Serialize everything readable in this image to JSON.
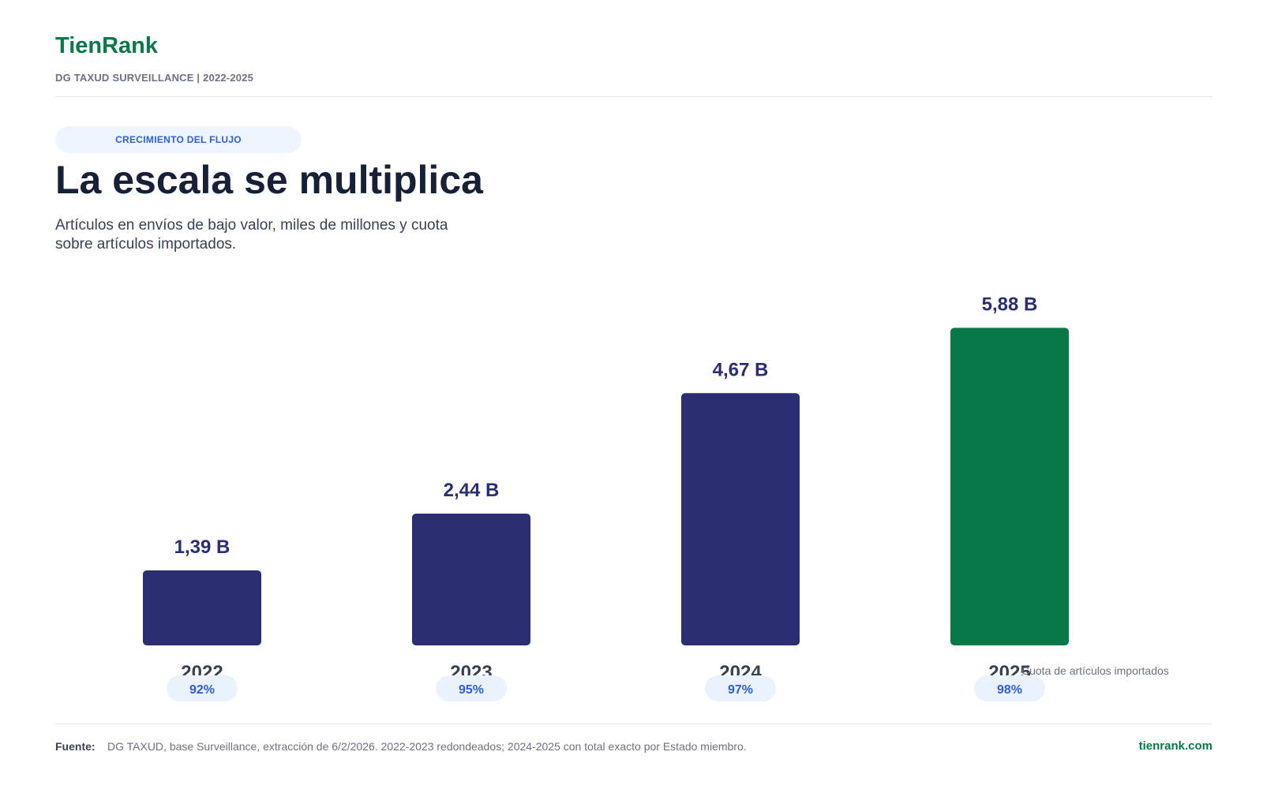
{
  "header": {
    "brand": "TienRank",
    "subtitle": "DG TAXUD SURVEILLANCE | 2022-2025"
  },
  "section": {
    "tag": "CRECIMIENTO DEL FLUJO",
    "title": "La escala se multiplica",
    "description": "Artículos en envíos de bajo valor, miles de millones y cuota sobre artículos importados."
  },
  "chart_data": {
    "type": "bar",
    "categories": [
      "2022",
      "2023",
      "2024",
      "2025"
    ],
    "values": [
      1.39,
      2.44,
      4.67,
      5.88
    ],
    "value_labels": [
      "1,39 B",
      "2,44 B",
      "4,67 B",
      "5,88 B"
    ],
    "shares": [
      "92%",
      "95%",
      "97%",
      "98%"
    ],
    "share_note": "Cuota de artículos importados",
    "ylim": [
      0,
      6.5
    ],
    "grid": false,
    "colors": {
      "bar": "#2b2e72",
      "highlight": "#087848",
      "value_label": "#2b2e72",
      "category_label": "#374151",
      "share_pill_bg": "#eaf2ff",
      "share_pill_text": "#2f5fd0"
    },
    "highlight_index": 3
  },
  "footer": {
    "source_label": "Fuente:",
    "source_text": "DG TAXUD, base Surveillance, extracción de 6/2/2026. 2022-2023 redondeados; 2024-2025 con total exacto por Estado miembro.",
    "site": "tienrank.com"
  }
}
